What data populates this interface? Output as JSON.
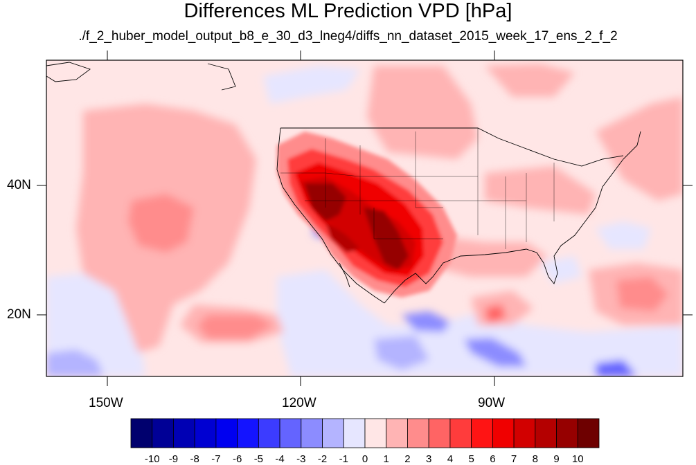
{
  "title": "Differences ML Prediction VPD [hPa]",
  "subtitle": "./f_2_huber_model_output_b8_e_30_d3_lneg4/diffs_nn_dataset_2015_week_17_ens_2_f_2",
  "axes": {
    "longitude_labels": [
      "150W",
      "120W",
      "90W"
    ],
    "latitude_labels": [
      "40N",
      "20N"
    ]
  },
  "colorbar": {
    "labels": [
      "-10",
      "-9",
      "-8",
      "-7",
      "-6",
      "-5",
      "-4",
      "-3",
      "-2",
      "-1",
      "0",
      "1",
      "2",
      "3",
      "4",
      "5",
      "6",
      "7",
      "8",
      "9",
      "10"
    ],
    "colors": [
      "#00006e",
      "#000096",
      "#0000b4",
      "#0000d2",
      "#0000f0",
      "#1414ff",
      "#3c3cff",
      "#6464ff",
      "#8c8cff",
      "#b4b4ff",
      "#e6e6ff",
      "#ffe6e6",
      "#ffb4b4",
      "#ff8c8c",
      "#ff6464",
      "#ff3c3c",
      "#ff1414",
      "#f00000",
      "#d20000",
      "#b40000",
      "#960000",
      "#6e0000"
    ]
  }
}
